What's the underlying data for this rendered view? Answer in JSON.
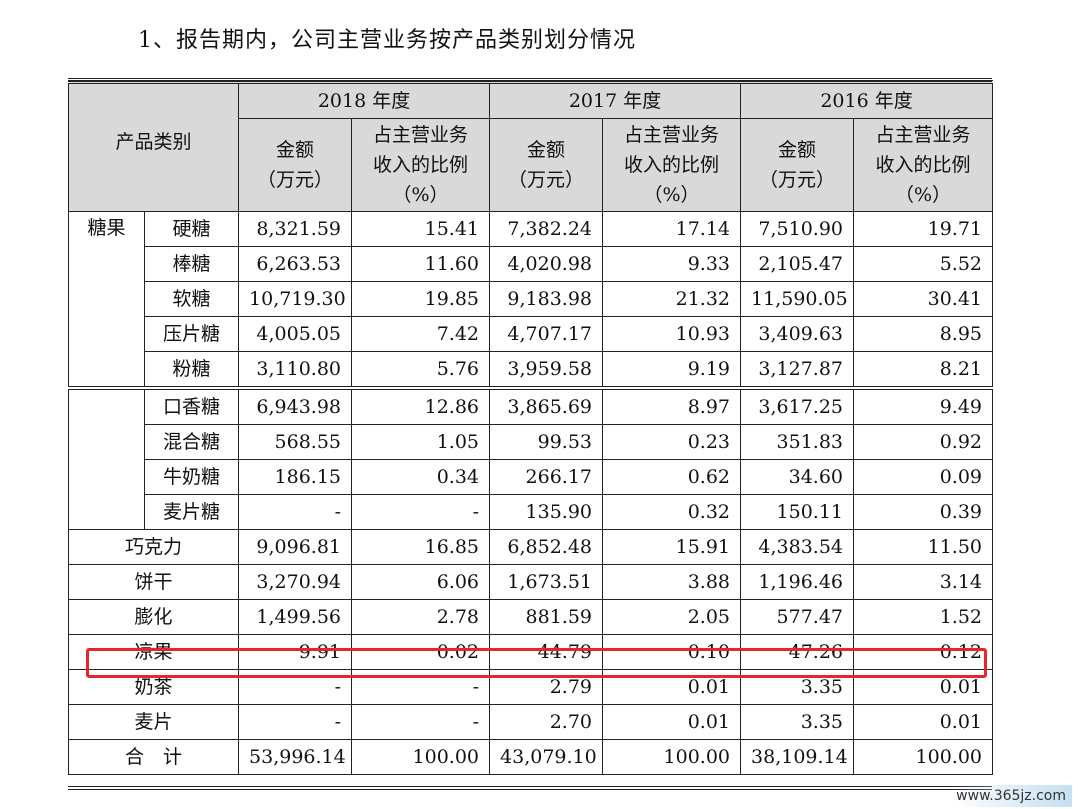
{
  "title": "1、报告期内，公司主营业务按产品类别划分情况",
  "header": {
    "category": "产品类别",
    "years": [
      "2018 年度",
      "2017 年度",
      "2016 年度"
    ],
    "amount": "金额\n（万元）",
    "ratio": "占主营业务\n收入的比例\n（%）"
  },
  "group_label": "糖果",
  "candy_rows": [
    {
      "name": "硬糖",
      "v": [
        "8,321.59",
        "15.41",
        "7,382.24",
        "17.14",
        "7,510.90",
        "19.71"
      ]
    },
    {
      "name": "棒糖",
      "v": [
        "6,263.53",
        "11.60",
        "4,020.98",
        "9.33",
        "2,105.47",
        "5.52"
      ]
    },
    {
      "name": "软糖",
      "v": [
        "10,719.30",
        "19.85",
        "9,183.98",
        "21.32",
        "11,590.05",
        "30.41"
      ]
    },
    {
      "name": "压片糖",
      "v": [
        "4,005.05",
        "7.42",
        "4,707.17",
        "10.93",
        "3,409.63",
        "8.95"
      ]
    },
    {
      "name": "粉糖",
      "v": [
        "3,110.80",
        "5.76",
        "3,959.58",
        "9.19",
        "3,127.87",
        "8.21"
      ]
    },
    {
      "name": "口香糖",
      "v": [
        "6,943.98",
        "12.86",
        "3,865.69",
        "8.97",
        "3,617.25",
        "9.49"
      ]
    },
    {
      "name": "混合糖",
      "v": [
        "568.55",
        "1.05",
        "99.53",
        "0.23",
        "351.83",
        "0.92"
      ]
    },
    {
      "name": "牛奶糖",
      "v": [
        "186.15",
        "0.34",
        "266.17",
        "0.62",
        "34.60",
        "0.09"
      ]
    },
    {
      "name": "麦片糖",
      "v": [
        "-",
        "-",
        "135.90",
        "0.32",
        "150.11",
        "0.39"
      ]
    }
  ],
  "other_rows": [
    {
      "name": "巧克力",
      "v": [
        "9,096.81",
        "16.85",
        "6,852.48",
        "15.91",
        "4,383.54",
        "11.50"
      ]
    },
    {
      "name": "饼干",
      "v": [
        "3,270.94",
        "6.06",
        "1,673.51",
        "3.88",
        "1,196.46",
        "3.14"
      ]
    },
    {
      "name": "膨化",
      "v": [
        "1,499.56",
        "2.78",
        "881.59",
        "2.05",
        "577.47",
        "1.52"
      ]
    },
    {
      "name": "凉果",
      "v": [
        "9.91",
        "0.02",
        "44.79",
        "0.10",
        "47.26",
        "0.12"
      ]
    },
    {
      "name": "奶茶",
      "v": [
        "-",
        "-",
        "2.79",
        "0.01",
        "3.35",
        "0.01"
      ]
    },
    {
      "name": "麦片",
      "v": [
        "-",
        "-",
        "2.70",
        "0.01",
        "3.35",
        "0.01"
      ]
    },
    {
      "name": "合　计",
      "v": [
        "53,996.14",
        "100.00",
        "43,079.10",
        "100.00",
        "38,109.14",
        "100.00"
      ]
    }
  ],
  "watermark": "www.365jz.com",
  "colors": {
    "header_bg": "#d9d9d9",
    "highlight": "#e5262e"
  }
}
